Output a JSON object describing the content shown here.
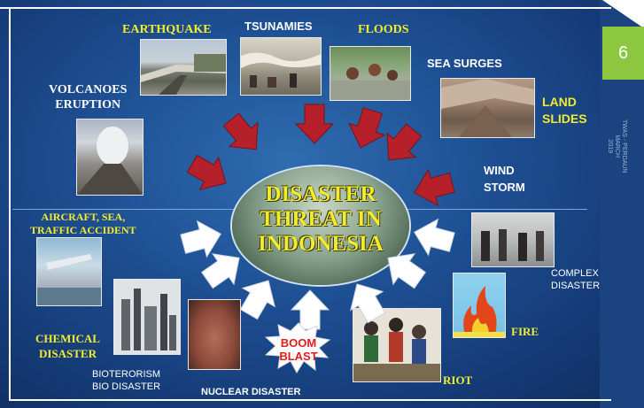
{
  "slide": {
    "page_number": "6",
    "side_note": [
      "TWAS - PERDAUN",
      "MARCH",
      "2019"
    ],
    "center_title": [
      "DISASTER",
      "THREAT IN",
      "INDONESIA"
    ],
    "labels": {
      "earthquake": "EARTHQUAKE",
      "tsunamies": "TSUNAMIES",
      "floods": "FLOODS",
      "sea_surges": "SEA SURGES",
      "volcanoes": [
        "VOLCANOES",
        "ERUPTION"
      ],
      "land_slides": [
        "LAND",
        "SLIDES"
      ],
      "wind_storm": [
        "WIND",
        "STORM"
      ],
      "aircraft": [
        "AIRCRAFT, SEA,",
        "TRAFFIC ACCIDENT"
      ],
      "complex": [
        "COMPLEX",
        "DISASTER"
      ],
      "chemical": [
        "CHEMICAL",
        "DISASTER"
      ],
      "fire": "FIRE",
      "bioterorism": [
        "BIOTERORISM",
        "BIO DISASTER"
      ],
      "boom_blast": [
        "BOOM",
        "BLAST"
      ],
      "riot": "RIOT",
      "nuclear": "NUCLEAR DISASTER"
    },
    "colors": {
      "background": "#1e4f93",
      "yellow_label": "#f3ec2e",
      "threat_arrow": "#b5202a",
      "response_arrow": "#ffffff",
      "page_tab": "#8dc63f"
    }
  }
}
